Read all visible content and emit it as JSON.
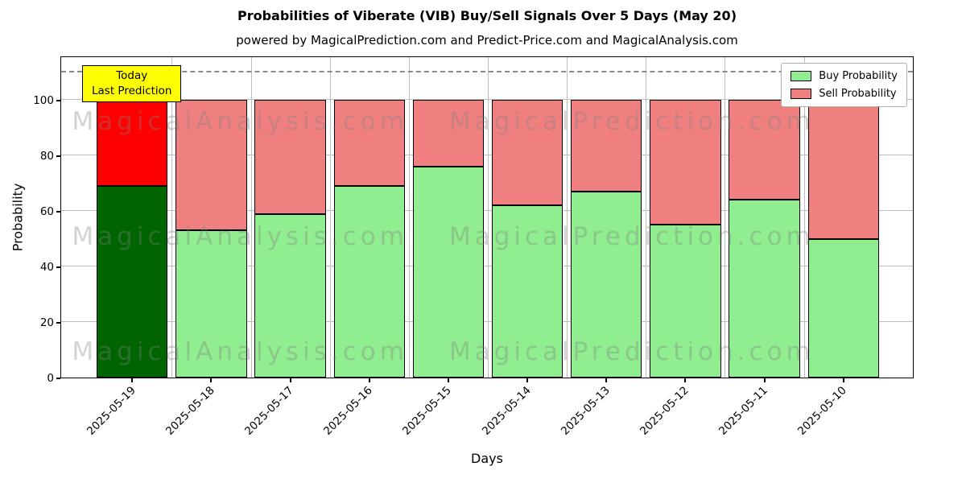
{
  "title": "Probabilities of Viberate (VIB) Buy/Sell Signals Over 5 Days (May 20)",
  "subtitle": "powered by MagicalPrediction.com and Predict-Price.com and MagicalAnalysis.com",
  "annotation": {
    "line1": "Today",
    "line2": "Last Prediction",
    "bg_color": "#ffff00",
    "border_color": "#000000"
  },
  "watermarks": {
    "left": "MagicalAnalysis.com",
    "right": "MagicalPrediction.com"
  },
  "legend": [
    {
      "label": "Buy Probability",
      "color": "#90ee90"
    },
    {
      "label": "Sell Probability",
      "color": "#f08080"
    }
  ],
  "chart_data": {
    "type": "bar",
    "stacked": true,
    "title": "Probabilities of Viberate (VIB) Buy/Sell Signals Over 5 Days (May 20)",
    "xlabel": "Days",
    "ylabel": "Probability",
    "categories": [
      "2025-05-19",
      "2025-05-18",
      "2025-05-17",
      "2025-05-16",
      "2025-05-15",
      "2025-05-14",
      "2025-05-13",
      "2025-05-12",
      "2025-05-11",
      "2025-05-10"
    ],
    "series": [
      {
        "name": "Buy Probability",
        "color": "#90ee90",
        "highlight_color": "#006400",
        "values": [
          69,
          53,
          59,
          69,
          76,
          62,
          67,
          55,
          64,
          50
        ]
      },
      {
        "name": "Sell Probability",
        "color": "#f08080",
        "highlight_color": "#ff0000",
        "values": [
          31,
          47,
          41,
          31,
          24,
          38,
          33,
          45,
          36,
          50
        ]
      }
    ],
    "highlight_index": 0,
    "yticks": [
      0,
      20,
      40,
      60,
      80,
      100
    ],
    "ylim": [
      0,
      116
    ],
    "dashed_line_y": 110,
    "grid": true,
    "legend_position": "upper right"
  }
}
